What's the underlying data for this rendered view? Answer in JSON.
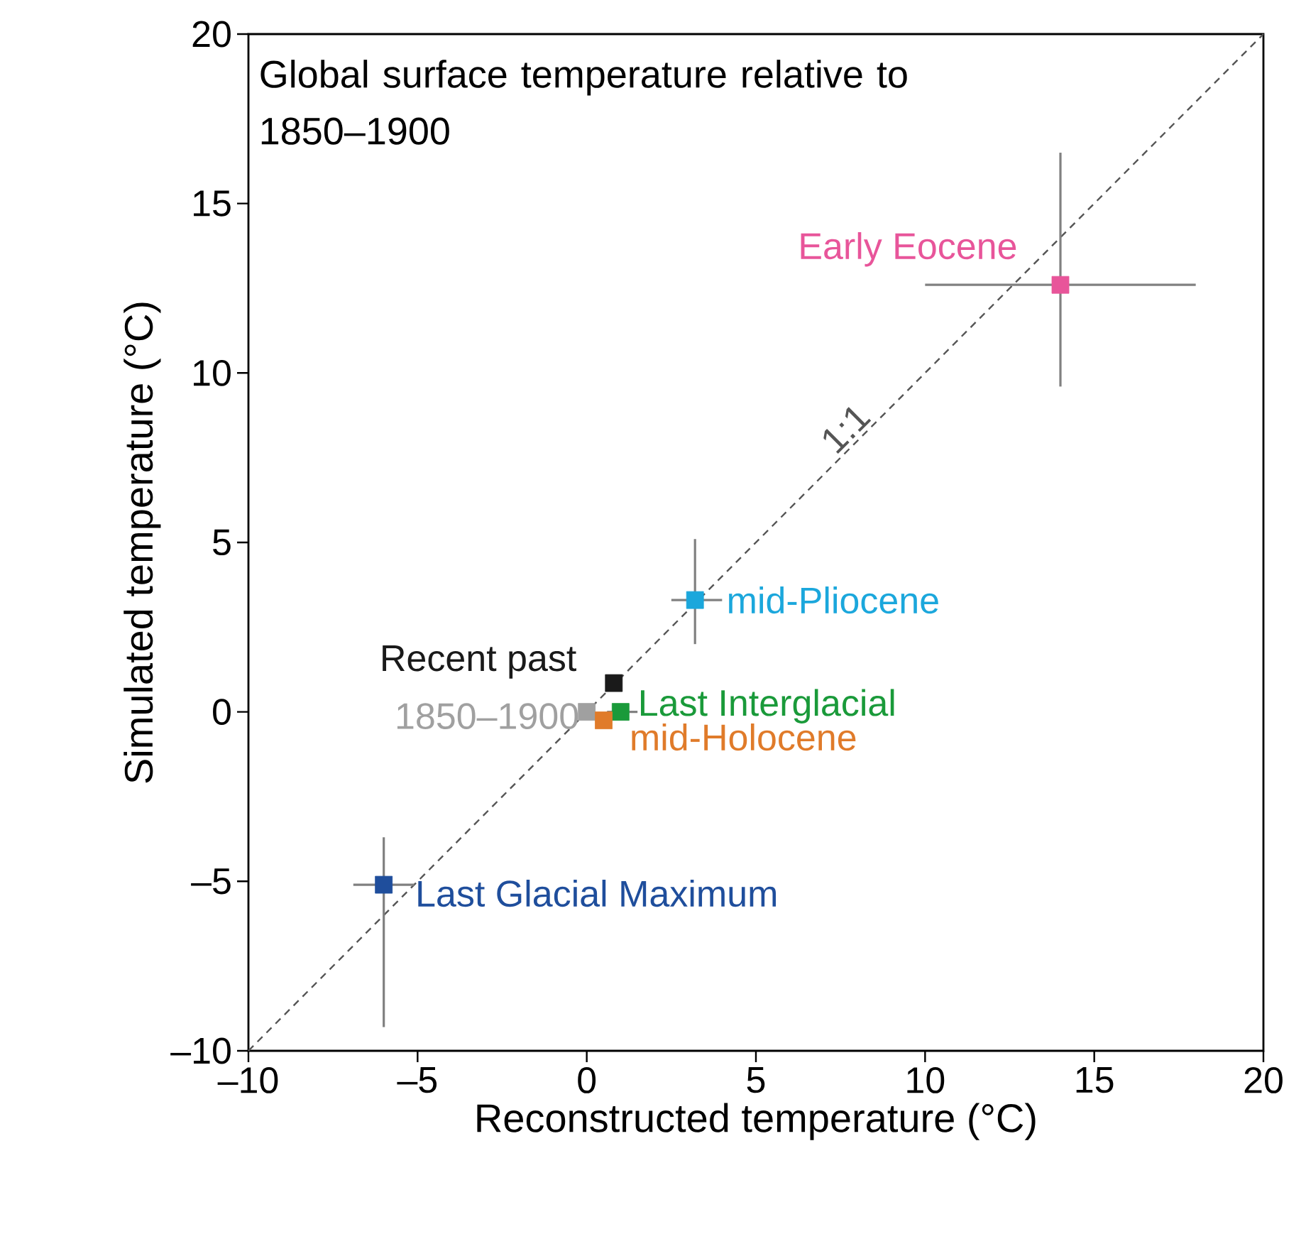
{
  "chart_data": {
    "type": "scatter",
    "title": "Global surface temperature relative to 1850–1900",
    "xlabel": "Reconstructed temperature (°C)",
    "ylabel": "Simulated temperature (°C)",
    "xlim": [
      -10,
      20
    ],
    "ylim": [
      -10,
      20
    ],
    "xticks": [
      {
        "value": -10,
        "label": "–10"
      },
      {
        "value": -5,
        "label": "–5"
      },
      0,
      5,
      10,
      15,
      20
    ],
    "yticks": [
      {
        "value": -10,
        "label": "–10"
      },
      {
        "value": -5,
        "label": "–5"
      },
      0,
      5,
      10,
      15,
      20
    ],
    "marker": "square",
    "grid": false,
    "series": [
      {
        "name": "1:1",
        "type": "line",
        "line_style": "dashed",
        "marker": "none",
        "color": "#555555",
        "x": [
          -10,
          20
        ],
        "values": [
          -10,
          20
        ]
      },
      {
        "name": "Early Eocene",
        "color": "#e8559a",
        "x": [
          14.0
        ],
        "values": [
          12.6
        ],
        "errors": [
          [
            9.6,
            16.5
          ]
        ],
        "xerrors": [
          [
            10,
            18
          ]
        ]
      },
      {
        "name": "mid-Pliocene",
        "color": "#1ba7dc",
        "x": [
          3.2
        ],
        "values": [
          3.3
        ],
        "errors": [
          [
            2.0,
            5.1
          ]
        ],
        "xerrors": [
          [
            2.5,
            4.0
          ]
        ]
      },
      {
        "name": "Recent past",
        "color": "#1a1a1a",
        "x": [
          0.8
        ],
        "values": [
          0.85
        ]
      },
      {
        "name": "1850–1900",
        "color": "#a0a0a0",
        "x": [
          0
        ],
        "values": [
          0
        ]
      },
      {
        "name": "Last Interglacial",
        "color": "#1a9a3a",
        "x": [
          1.0
        ],
        "values": [
          0
        ],
        "xerrors": [
          [
            0.6,
            1.5
          ]
        ]
      },
      {
        "name": "mid-Holocene",
        "color": "#e07b2a",
        "x": [
          0.5
        ],
        "values": [
          -0.25
        ]
      },
      {
        "name": "Last Glacial Maximum",
        "color": "#1f4e9c",
        "x": [
          -6.0
        ],
        "values": [
          -5.1
        ],
        "errors": [
          [
            -9.3,
            -3.7
          ]
        ],
        "xerrors": [
          [
            -6.9,
            -5.1
          ]
        ]
      }
    ]
  }
}
